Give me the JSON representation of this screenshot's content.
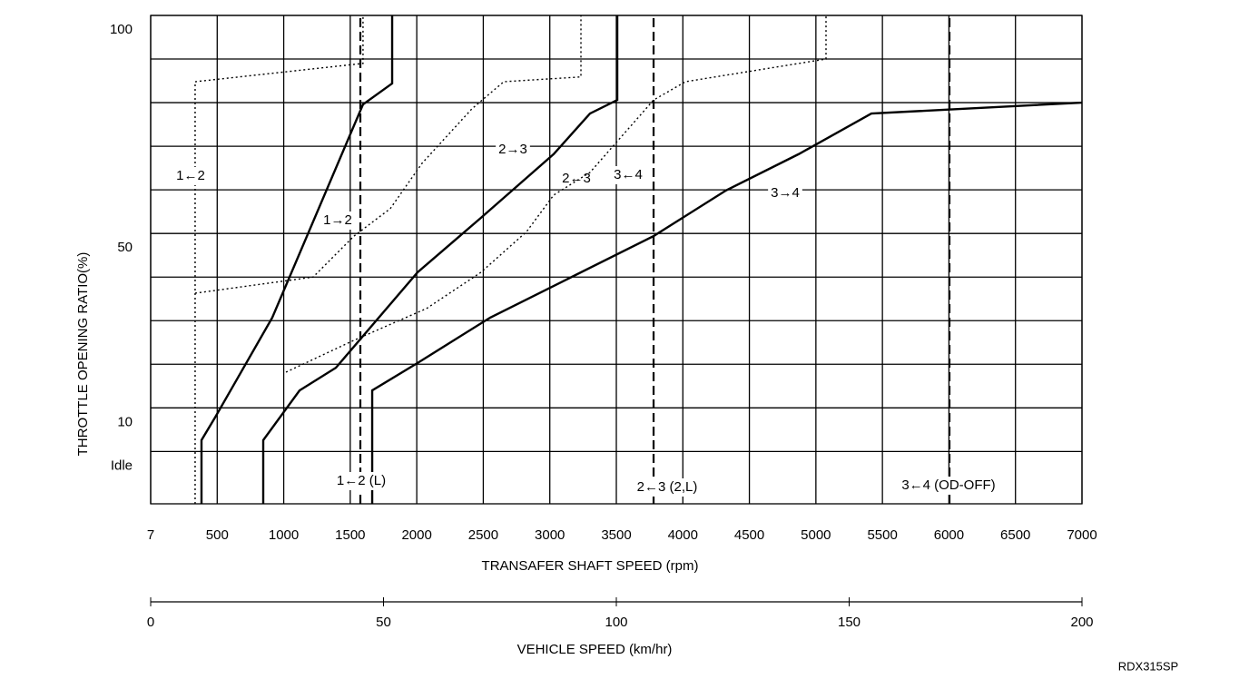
{
  "chart_data": {
    "type": "line",
    "y_label": "THROTTLE OPENING RATIO(%)",
    "x_label": "TRANSAFER SHAFT SPEED (rpm)",
    "x2_label": "VEHICLE SPEED (km/hr)",
    "figure_code": "RDX315SP",
    "xlim": [
      0,
      7000
    ],
    "xticks": [
      {
        "value": 0,
        "label": "7"
      },
      500,
      1000,
      1500,
      2000,
      2500,
      3000,
      3500,
      4000,
      4500,
      5000,
      5500,
      6000,
      6500,
      7000
    ],
    "ylim": [
      -12,
      100
    ],
    "yticks": [
      {
        "value": 0,
        "label": "Idle"
      },
      10,
      50,
      100
    ],
    "ygrid": [
      0,
      10,
      20,
      30,
      40,
      50,
      60,
      70,
      80,
      90,
      100
    ],
    "x2lim": [
      0,
      200
    ],
    "x2ticks": [
      0,
      50,
      100,
      150,
      200
    ],
    "grid": true,
    "series": [
      {
        "name": "1→2",
        "color": "#000000",
        "style": "solid",
        "x": [
          382,
          382,
          484,
          914,
          1596,
          1815,
          1815
        ],
        "values": [
          -12,
          2.6,
          7.8,
          30.7,
          79.6,
          84.4,
          100
        ]
      },
      {
        "name": "2→3",
        "color": "#000000",
        "style": "solid",
        "x": [
          846,
          846,
          1119,
          1392,
          2006,
          2483,
          3029,
          3302,
          3507,
          3507
        ],
        "values": [
          -12,
          2.6,
          14,
          19.2,
          41.1,
          53.6,
          68.2,
          77.5,
          80.6,
          100
        ]
      },
      {
        "name": "3→4",
        "color": "#000000",
        "style": "solid",
        "x": [
          1665,
          1665,
          2006,
          2552,
          3097,
          3780,
          4326,
          4871,
          5417,
          7000
        ],
        "values": [
          -12,
          14,
          20.3,
          30.7,
          39,
          49.4,
          59.9,
          68.2,
          77.5,
          80
        ]
      },
      {
        "name": "1←2",
        "color": "#000000",
        "style": "dotted",
        "x": [
          334,
          334,
          1596,
          1596
        ],
        "values": [
          -12,
          84.8,
          89,
          100
        ]
      },
      {
        "name": "2←3",
        "color": "#000000",
        "style": "dotted",
        "x": [
          334,
          1221,
          1528,
          1801,
          2040,
          2415,
          2654,
          3234,
          3234
        ],
        "values": [
          36.3,
          40,
          49.4,
          55.7,
          66.1,
          78.6,
          84.8,
          85.9,
          100
        ]
      },
      {
        "name": "3←4",
        "color": "#000000",
        "style": "dotted",
        "x": [
          1017,
          1528,
          2074,
          2483,
          2825,
          3029,
          3302,
          3780,
          4019,
          5076,
          5076
        ],
        "values": [
          18.2,
          25.5,
          32.8,
          41.1,
          50.4,
          58.8,
          64,
          80.6,
          84.8,
          90,
          100
        ]
      },
      {
        "name": "1←2 (L)",
        "color": "#000000",
        "style": "dashed",
        "x": [
          1576,
          1576
        ],
        "values": [
          -12,
          100
        ]
      },
      {
        "name": "2←3 (2,L)",
        "color": "#000000",
        "style": "dashed",
        "x": [
          3780,
          3780
        ],
        "values": [
          -12,
          100
        ]
      },
      {
        "name": "3←4 (OD-OFF)",
        "color": "#000000",
        "style": "dashed",
        "x": [
          6004,
          6004
        ],
        "values": [
          -12,
          100
        ]
      }
    ]
  }
}
